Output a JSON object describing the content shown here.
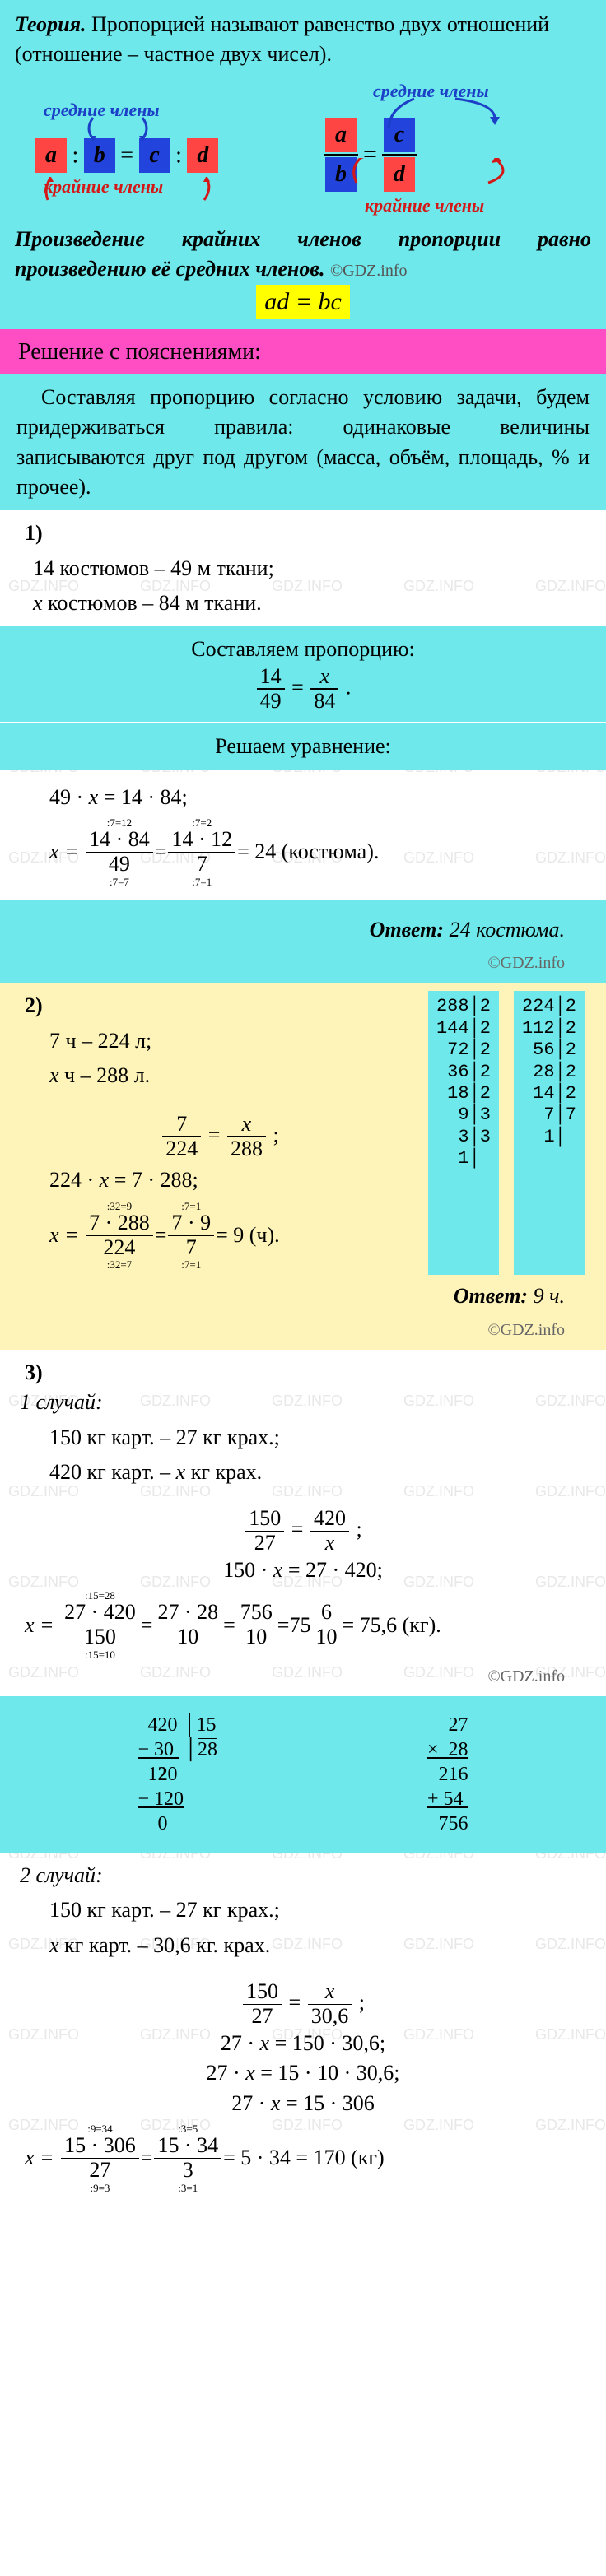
{
  "theory": {
    "title": "Теория.",
    "definition": "Пропорцией называют равенство двух отношений (отношение – частное двух чисел).",
    "label_middle": "средние члены",
    "label_outer": "крайние члены",
    "a": "a",
    "b": "b",
    "c": "c",
    "d": "d",
    "colon": ":",
    "rule": "Произведение крайних членов пропорции равно произведению её средних членов.",
    "formula": "ad = bc",
    "copyright": "©GDZ.info"
  },
  "colors": {
    "cyan": "#6ee8ea",
    "pink": "#ff4dc4",
    "yellow_hl": "#ffff00",
    "yellow_box": "#fef4b9",
    "red_box": "#ff4444",
    "blue_box": "#2244dd",
    "label_blue": "#1b3fc7",
    "label_red": "#d41818"
  },
  "section_header": "Решение с пояснениями:",
  "intro": "Составляя пропорцию согласно условию задачи, будем придерживаться правила: одинаковые величины записываются друг под другом (масса, объём, площадь, % и прочее).",
  "t1": {
    "num": "1)",
    "l1": "14 костюмов – 49 м ткани;",
    "l2_a": "x",
    "l2_b": "  костюмов – 84 м ткани.",
    "compose": "Составляем пропорцию:",
    "prop_n1": "14",
    "prop_d1": "49",
    "prop_n2": "x",
    "prop_d2": "84",
    "solve": "Решаем уравнение:",
    "eq1": "49 · x = 14 · 84;",
    "eq2_pre": "x =",
    "f1_n": "14 · 84",
    "f1_d": "49",
    "n1_top": ":7=12",
    "n1_bot": ":7=7",
    "f2_n": "14 · 12",
    "f2_d": "7",
    "n2_top": ":7=2",
    "n2_bot": ":7=1",
    "res": "= 24  (костюма).",
    "answer_label": "Ответ:",
    "answer_val": "24 костюма.",
    "copyright": "©GDZ.info"
  },
  "t2": {
    "num": "2)",
    "l1": "7 ч – 224 л;",
    "l2_a": "x",
    "l2_b": " ч – 288 л.",
    "prop_n1": "7",
    "prop_d1": "224",
    "prop_n2": "x",
    "prop_d2": "288",
    "eq1": "224 · x = 7 · 288;",
    "eq2_pre": "x =",
    "f1_n": "7 · 288",
    "f1_d": "224",
    "n1_top": ":32=9",
    "n1_bot": ":32=7",
    "f2_n": "7 · 9",
    "f2_d": "7",
    "n2_top": ":7=1",
    "n2_bot": ":7=1",
    "res": "= 9  (ч).",
    "div288": [
      "288|2",
      "144|2",
      " 72|2",
      " 36|2",
      " 18|2",
      "  9|3",
      "  3|3",
      "  1|"
    ],
    "div224": [
      "224|2",
      "112|2",
      " 56|2",
      " 28|2",
      " 14|2",
      "  7|7",
      "  1|"
    ],
    "answer_label": "Ответ:",
    "answer_val": "9 ч.",
    "copyright": "©GDZ.info"
  },
  "t3": {
    "num": "3)",
    "case1": "1 случай:",
    "c1_l1": "150 кг карт. – 27 кг крах.;",
    "c1_l2": "420 кг карт. – x  кг крах.",
    "c1_prop_n1": "150",
    "c1_prop_d1": "27",
    "c1_prop_n2": "420",
    "c1_prop_d2": "x",
    "c1_eq1": "150 · x = 27 · 420;",
    "c1_eq2_pre": "x =",
    "c1_f1_n": "27 · 420",
    "c1_f1_d": "150",
    "c1_n1_top": ":15=28",
    "c1_n1_bot": ":15=10",
    "c1_f2_n": "27 · 28",
    "c1_f2_d": "10",
    "c1_f3_n": "756",
    "c1_f3_d": "10",
    "c1_mixed_whole": "75",
    "c1_mixed_n": "6",
    "c1_mixed_d": "10",
    "c1_res": "= 75,6  (кг).",
    "c1_copyright": "©GDZ.info",
    "long_div": [
      "  420|15",
      "− 30 |28",
      "  120",
      " −120",
      "    0"
    ],
    "long_mul": [
      "  27",
      "× 28",
      " 216",
      "+54 ",
      " 756"
    ],
    "case2": "2 случай:",
    "c2_l1": "150 кг карт. – 27 кг крах.;",
    "c2_l2_a": "x",
    "c2_l2_b": "  кг карт. – 30,6 кг. крах.",
    "c2_prop_n1": "150",
    "c2_prop_d1": "27",
    "c2_prop_n2": "x",
    "c2_prop_d2": "30,6",
    "c2_eq1": "27 · x = 150 · 30,6;",
    "c2_eq2": "27 · x = 15 · 10 · 30,6;",
    "c2_eq3": "27 · x = 15 · 306",
    "c2_eq4_pre": "x =",
    "c2_f1_n": "15 · 306",
    "c2_f1_d": "27",
    "c2_n1_top": ":9=34",
    "c2_n1_bot": ":9=3",
    "c2_f2_n": "15 · 34",
    "c2_f2_d": "3",
    "c2_n2_top": ":3=5",
    "c2_n2_bot": ":3=1",
    "c2_res": "= 5 · 34 = 170   (кг)"
  },
  "watermark_text": "GDZ.INFO"
}
